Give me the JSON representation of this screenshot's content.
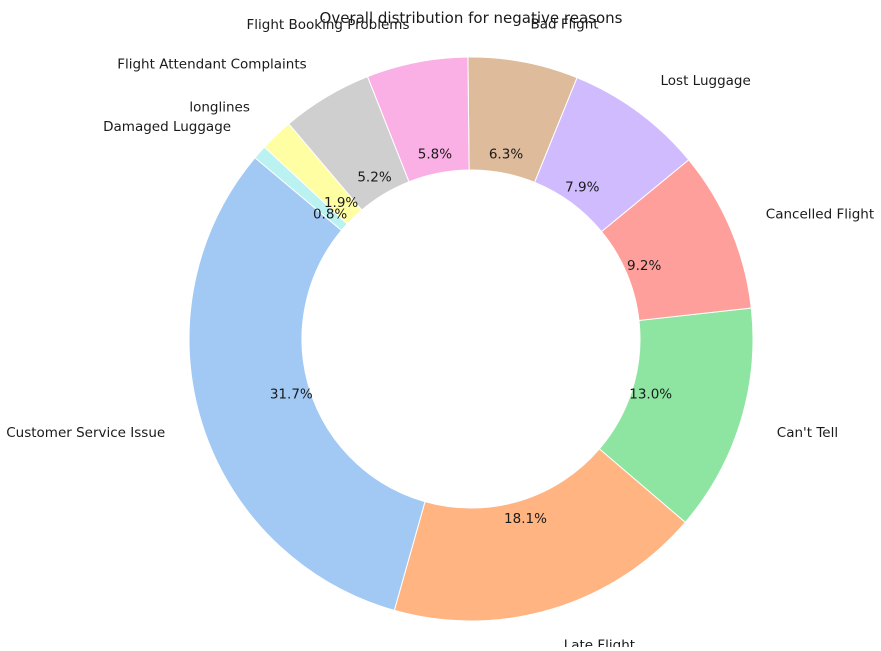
{
  "chart_data": {
    "type": "pie",
    "style": "donut",
    "title": "Overall distribution for negative reasons",
    "start_angle_deg": 140,
    "direction": "counterclockwise",
    "slices": [
      {
        "label": "Customer Service Issue",
        "value": 31.7,
        "pct_label": "31.7%",
        "color": "#a1c9f4"
      },
      {
        "label": "Late Flight",
        "value": 18.1,
        "pct_label": "18.1%",
        "color": "#ffb482"
      },
      {
        "label": "Can't Tell",
        "value": 13.0,
        "pct_label": "13.0%",
        "color": "#8de5a1"
      },
      {
        "label": "Cancelled Flight",
        "value": 9.2,
        "pct_label": "9.2%",
        "color": "#ff9f9b"
      },
      {
        "label": "Lost Luggage",
        "value": 7.9,
        "pct_label": "7.9%",
        "color": "#d0bbff"
      },
      {
        "label": "Bad Flight",
        "value": 6.3,
        "pct_label": "6.3%",
        "color": "#debb9b"
      },
      {
        "label": "Flight Booking Problems",
        "value": 5.8,
        "pct_label": "5.8%",
        "color": "#fab0e4"
      },
      {
        "label": "Flight Attendant Complaints",
        "value": 5.2,
        "pct_label": "5.2%",
        "color": "#cfcfcf"
      },
      {
        "label": "longlines",
        "value": 1.9,
        "pct_label": "1.9%",
        "color": "#fffea3"
      },
      {
        "label": "Damaged Luggage",
        "value": 0.8,
        "pct_label": "0.8%",
        "color": "#b9f2f0"
      }
    ]
  }
}
